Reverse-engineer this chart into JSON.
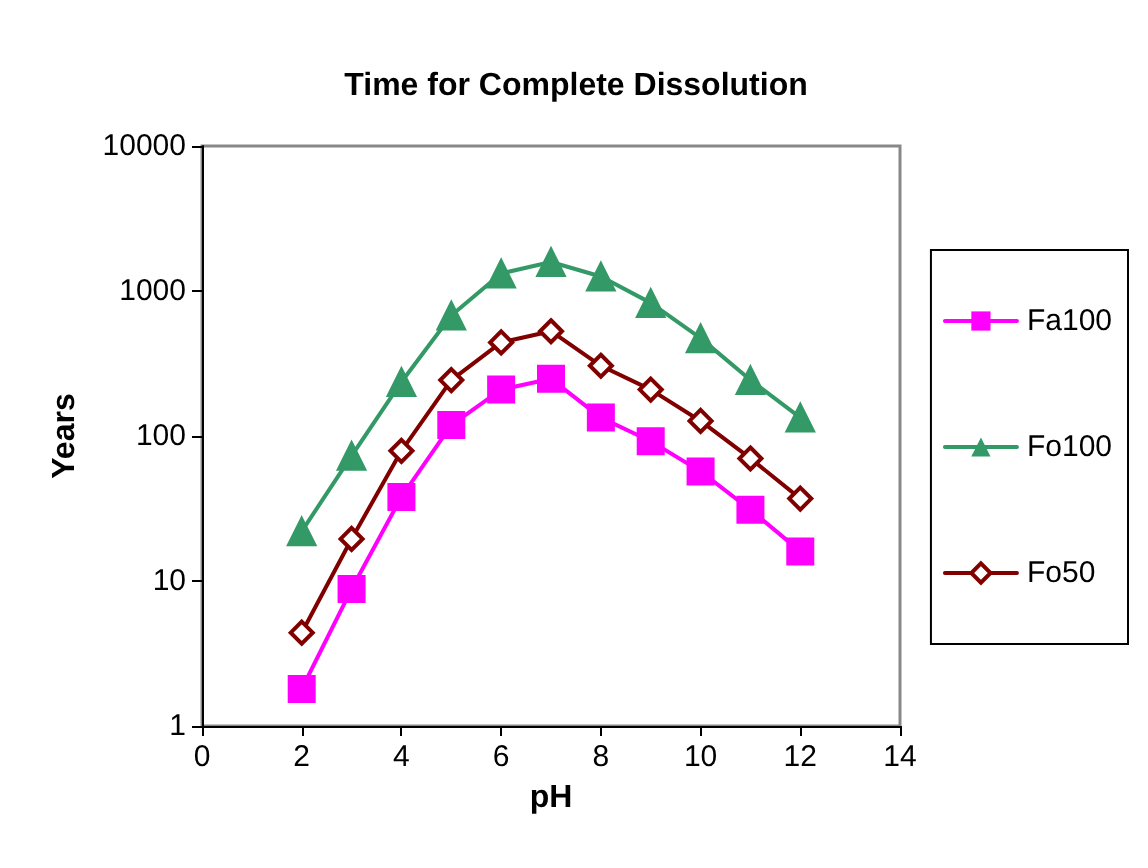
{
  "chart_data": {
    "type": "line",
    "title": "Time for Complete Dissolution",
    "xlabel": "pH",
    "ylabel": "Years",
    "log": "y",
    "grid": false,
    "legend": "right",
    "line_style": "solid",
    "x": [
      2,
      3,
      4,
      5,
      6,
      7,
      8,
      9,
      10,
      11,
      12
    ],
    "xlim": [
      0,
      14
    ],
    "xticks": [
      0,
      2,
      4,
      6,
      8,
      10,
      12,
      14
    ],
    "ylim": [
      1,
      10000
    ],
    "yticks": [
      1,
      10,
      100,
      1000,
      10000
    ],
    "series": [
      {
        "name": "Fa100",
        "color": "#ff00ff",
        "marker": "square",
        "values": [
          1.8,
          8.8,
          38,
          119,
          209,
          248,
          134,
          92,
          57,
          31,
          16
        ]
      },
      {
        "name": "Fo100",
        "color": "#339966",
        "marker": "triangle",
        "values": [
          22,
          73,
          236,
          678,
          1322,
          1585,
          1259,
          828,
          473,
          243,
          134
        ]
      },
      {
        "name": "Fo50",
        "color": "#800000",
        "marker": "diamond",
        "values": [
          4.4,
          19.5,
          79,
          243,
          442,
          528,
          305,
          209,
          127,
          70,
          37
        ]
      }
    ]
  }
}
